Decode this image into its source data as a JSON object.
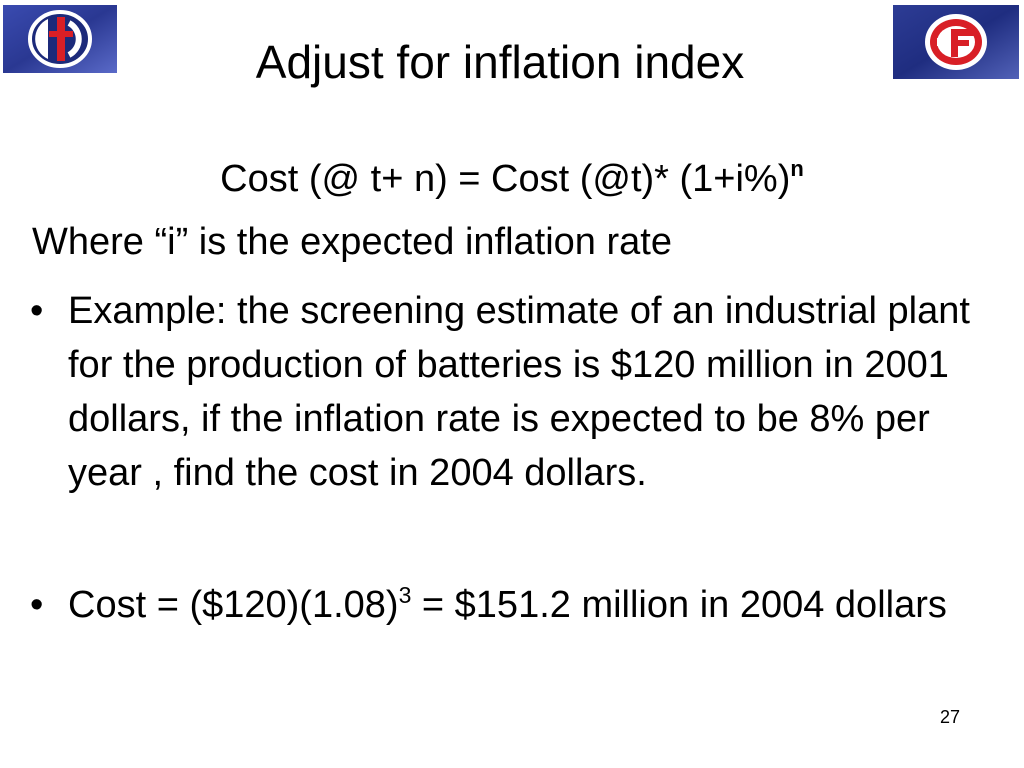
{
  "slide": {
    "title": "Adjust for inflation index",
    "formula": {
      "main": "Cost (@ t+ n) = Cost (@t)* (1+i%)",
      "exponent": "n"
    },
    "where_text": "Where “i” is the expected  inflation rate",
    "bullets": [
      {
        "marker": "•",
        "text": "Example: the screening estimate of an industrial plant for the production of batteries is $120 million in 2001 dollars, if the inflation rate is expected to be 8% per year , find the cost in 2004 dollars."
      },
      {
        "marker": "•",
        "text_before": "Cost = ($120)(1.08)",
        "exponent": "3",
        "text_after": " = $151.2 million in 2004 dollars"
      }
    ],
    "page_number": "27"
  },
  "logos": {
    "left": {
      "icon": "university-emblem-icon",
      "colors": [
        "#2a3a8c",
        "#d81f26",
        "#ffffff"
      ]
    },
    "right": {
      "icon": "company-emblem-icon",
      "colors": [
        "#1f2f85",
        "#d81f26",
        "#ffffff"
      ]
    }
  }
}
